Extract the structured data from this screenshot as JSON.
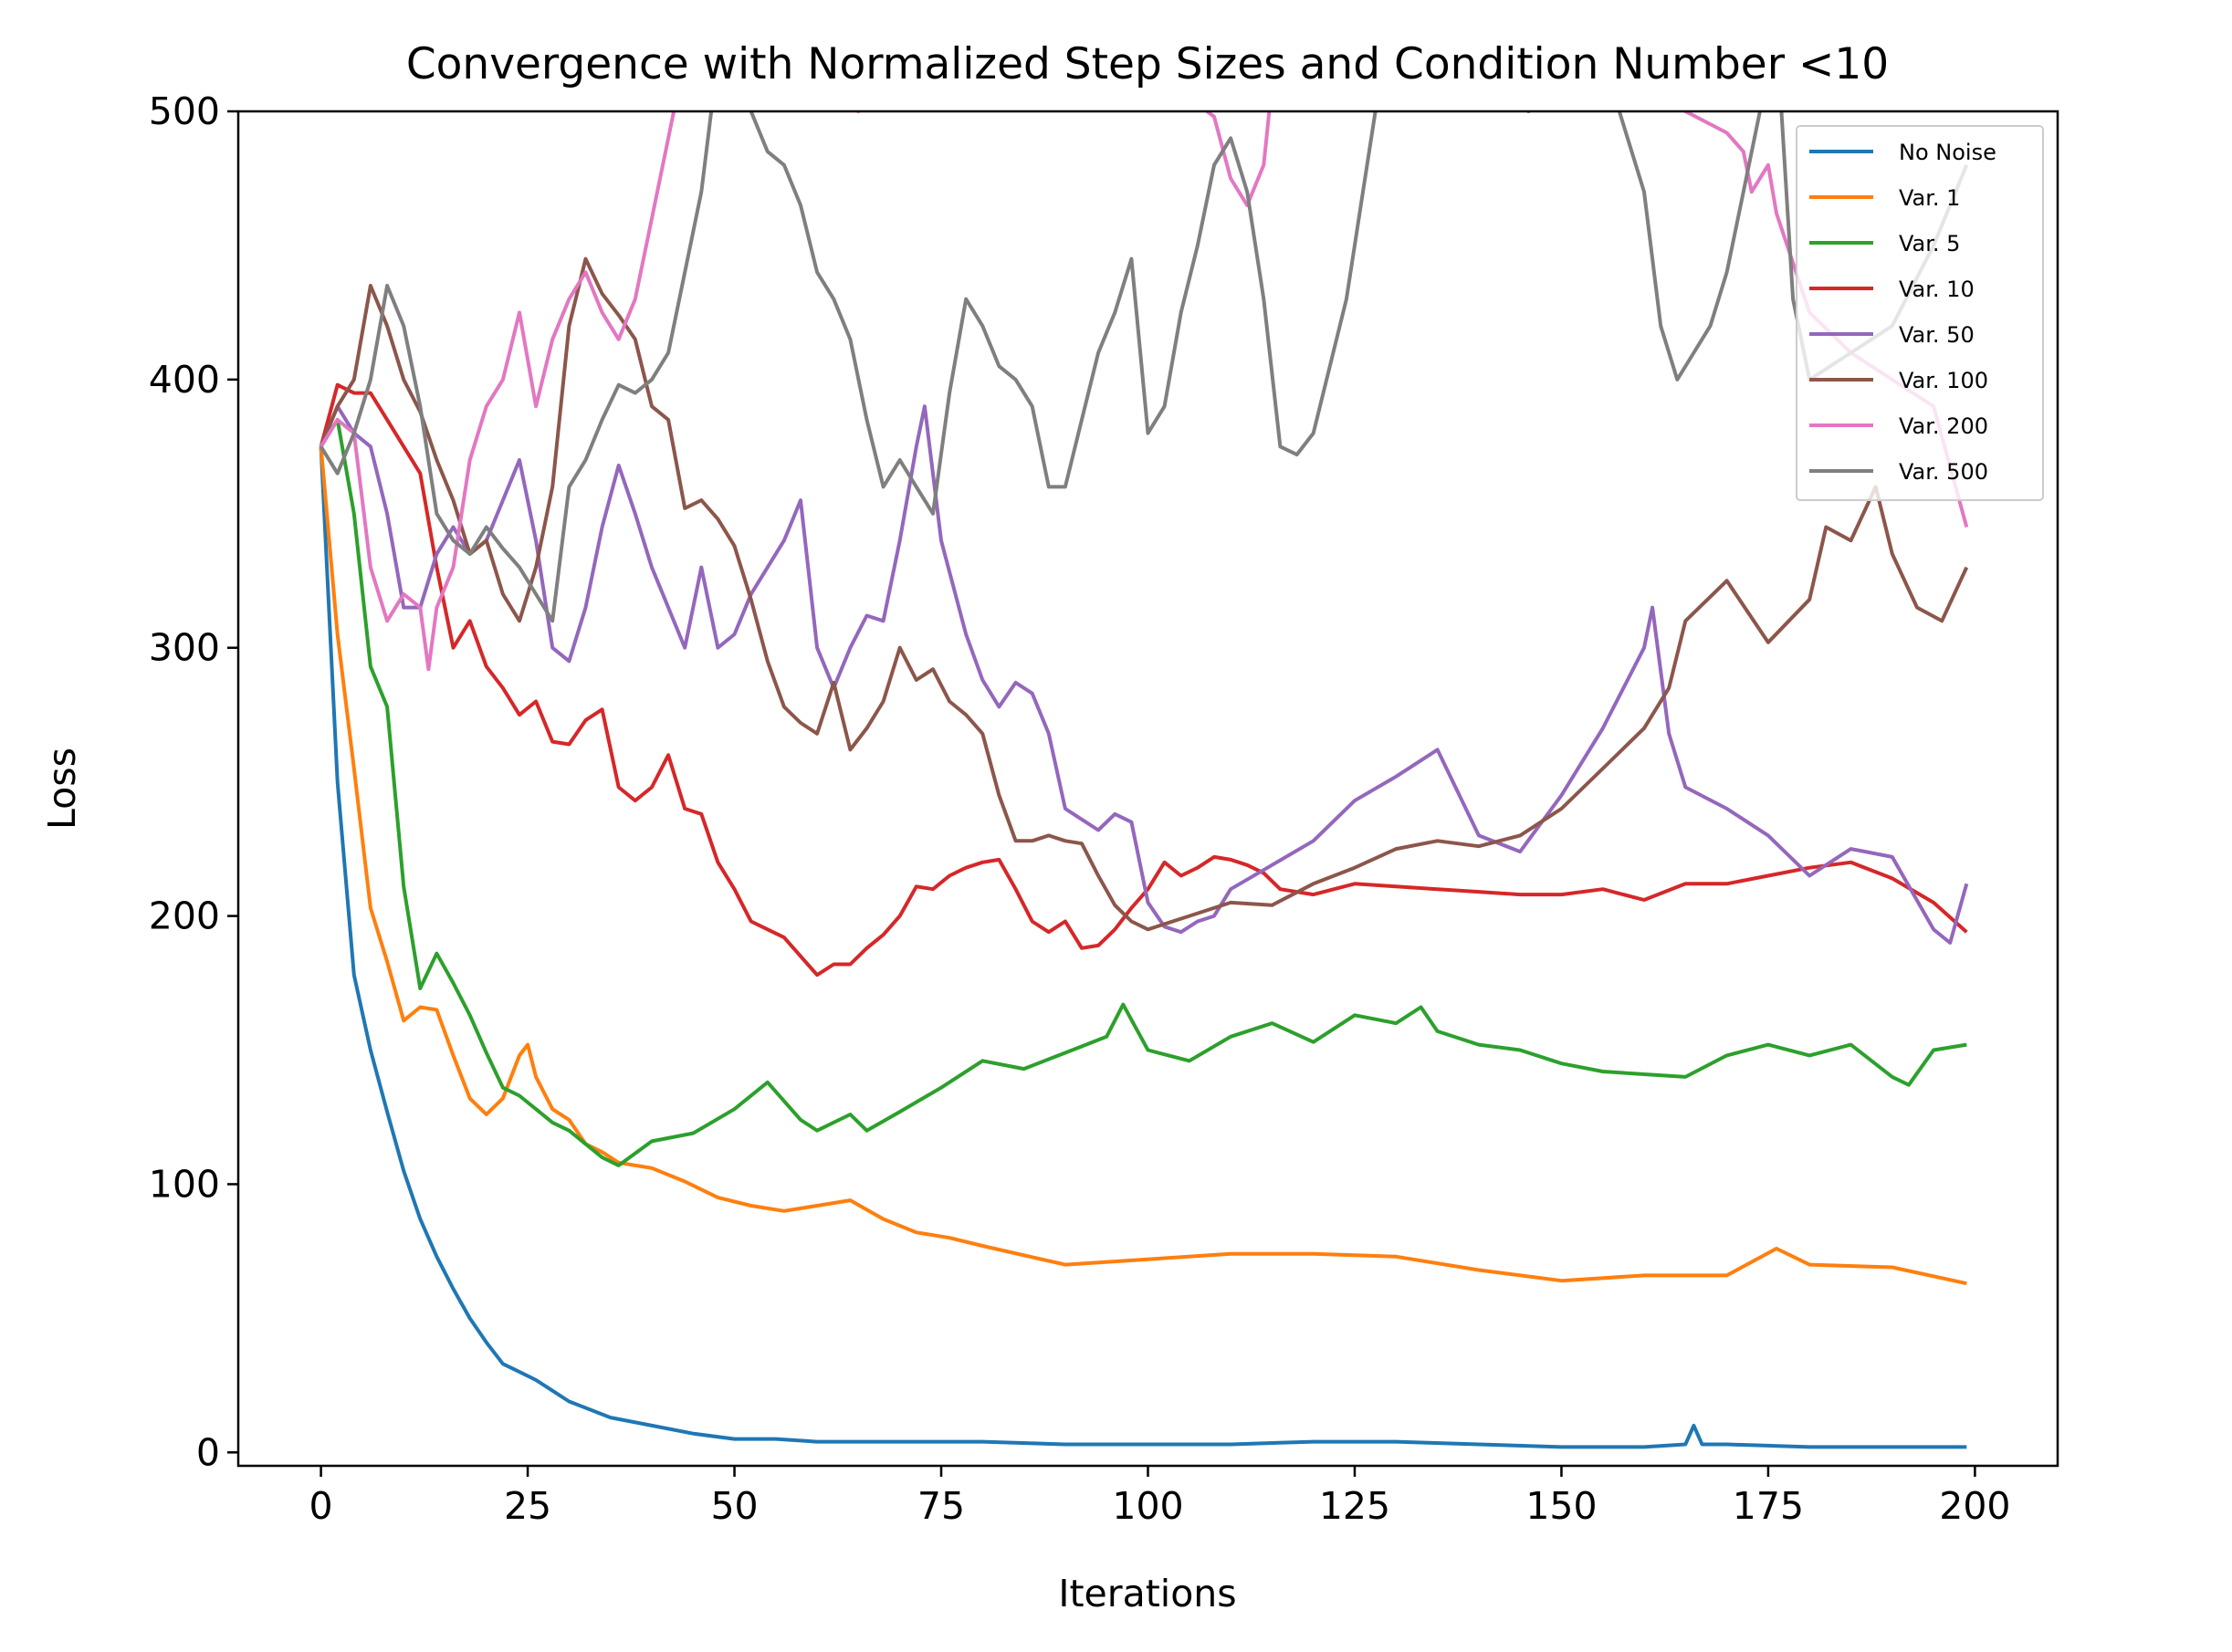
{
  "chart_data": {
    "type": "line",
    "title": "Convergence with Normalized Step Sizes and Condition Number <10",
    "xlabel": "Iterations",
    "ylabel": "Loss",
    "xlim": [
      -10,
      210
    ],
    "ylim": [
      -5,
      500
    ],
    "xticks": [
      0,
      25,
      50,
      75,
      100,
      125,
      150,
      175,
      200
    ],
    "yticks": [
      0,
      100,
      200,
      300,
      400,
      500
    ],
    "grid": false,
    "legend": "top-right",
    "series": [
      {
        "name": "No Noise",
        "color": "#1f77b4",
        "x": [
          0,
          2,
          4,
          6,
          8,
          10,
          12,
          14,
          16,
          18,
          20,
          22,
          24,
          26,
          28,
          30,
          35,
          40,
          45,
          50,
          55,
          60,
          65,
          70,
          80,
          90,
          100,
          110,
          120,
          130,
          140,
          150,
          160,
          165,
          166,
          167,
          170,
          180,
          190,
          199
        ],
        "y": [
          375,
          250,
          178,
          150,
          127,
          105,
          87,
          73,
          61,
          50,
          41,
          33,
          30,
          27,
          23,
          19,
          13,
          10,
          7,
          5,
          5,
          4,
          4,
          4,
          4,
          3,
          3,
          3,
          4,
          4,
          3,
          2,
          2,
          3,
          10,
          3,
          3,
          2,
          2,
          2
        ]
      },
      {
        "name": "Var. 1",
        "color": "#ff7f0e",
        "x": [
          0,
          2,
          4,
          6,
          8,
          10,
          12,
          14,
          16,
          18,
          20,
          22,
          24,
          25,
          26,
          28,
          30,
          32,
          34,
          36,
          40,
          44,
          48,
          52,
          56,
          60,
          64,
          68,
          72,
          76,
          80,
          90,
          100,
          110,
          120,
          130,
          140,
          150,
          160,
          170,
          176,
          180,
          190,
          199
        ],
        "y": [
          375,
          305,
          255,
          203,
          183,
          161,
          166,
          165,
          148,
          132,
          126,
          132,
          148,
          152,
          140,
          128,
          124,
          115,
          112,
          108,
          106,
          101,
          95,
          92,
          90,
          92,
          94,
          87,
          82,
          80,
          77,
          70,
          72,
          74,
          74,
          73,
          68,
          64,
          66,
          66,
          76,
          70,
          69,
          63
        ]
      },
      {
        "name": "Var. 5",
        "color": "#2ca02c",
        "x": [
          0,
          2,
          4,
          6,
          8,
          10,
          12,
          14,
          16,
          18,
          20,
          22,
          24,
          26,
          28,
          30,
          34,
          36,
          40,
          45,
          50,
          54,
          58,
          60,
          64,
          66,
          70,
          75,
          80,
          85,
          90,
          95,
          97,
          100,
          105,
          110,
          115,
          120,
          125,
          130,
          133,
          135,
          140,
          145,
          150,
          155,
          160,
          165,
          170,
          175,
          180,
          185,
          190,
          192,
          195,
          199
        ],
        "y": [
          375,
          385,
          350,
          293,
          278,
          211,
          173,
          186,
          175,
          163,
          149,
          136,
          133,
          128,
          123,
          120,
          110,
          107,
          116,
          119,
          128,
          138,
          124,
          120,
          126,
          120,
          127,
          136,
          146,
          143,
          149,
          155,
          167,
          150,
          146,
          155,
          160,
          153,
          163,
          160,
          166,
          157,
          152,
          150,
          145,
          142,
          141,
          140,
          148,
          152,
          148,
          152,
          140,
          137,
          150,
          152
        ]
      },
      {
        "name": "Var. 10",
        "color": "#d62728",
        "x": [
          0,
          2,
          4,
          6,
          8,
          10,
          12,
          14,
          16,
          18,
          20,
          22,
          24,
          26,
          28,
          30,
          32,
          34,
          36,
          38,
          40,
          42,
          44,
          46,
          48,
          50,
          52,
          54,
          56,
          58,
          60,
          62,
          64,
          66,
          68,
          70,
          72,
          74,
          76,
          78,
          80,
          82,
          84,
          86,
          88,
          90,
          92,
          94,
          96,
          98,
          100,
          102,
          104,
          106,
          108,
          110,
          112,
          114,
          116,
          120,
          125,
          130,
          135,
          140,
          145,
          150,
          155,
          160,
          165,
          170,
          175,
          180,
          185,
          190,
          195,
          199
        ],
        "y": [
          375,
          398,
          395,
          395,
          385,
          375,
          365,
          330,
          300,
          310,
          293,
          285,
          275,
          280,
          265,
          264,
          273,
          277,
          248,
          243,
          248,
          260,
          240,
          238,
          220,
          210,
          198,
          195,
          192,
          185,
          178,
          182,
          182,
          188,
          193,
          200,
          211,
          210,
          215,
          218,
          220,
          221,
          210,
          198,
          194,
          198,
          188,
          189,
          195,
          203,
          210,
          220,
          215,
          218,
          222,
          221,
          219,
          216,
          210,
          208,
          212,
          211,
          210,
          209,
          208,
          208,
          210,
          206,
          212,
          212,
          215,
          218,
          220,
          214,
          205,
          194
        ]
      },
      {
        "name": "Var. 50",
        "color": "#9467bd",
        "x": [
          0,
          2,
          4,
          6,
          8,
          10,
          12,
          14,
          16,
          18,
          20,
          22,
          24,
          26,
          28,
          30,
          32,
          34,
          36,
          38,
          40,
          42,
          44,
          46,
          48,
          50,
          52,
          54,
          56,
          58,
          60,
          62,
          64,
          66,
          68,
          70,
          72,
          73,
          75,
          78,
          80,
          82,
          84,
          86,
          88,
          90,
          92,
          94,
          96,
          98,
          100,
          102,
          104,
          106,
          108,
          110,
          115,
          120,
          125,
          130,
          135,
          140,
          145,
          150,
          155,
          160,
          161,
          163,
          165,
          170,
          175,
          180,
          185,
          190,
          195,
          197,
          199
        ],
        "y": [
          375,
          390,
          380,
          375,
          350,
          315,
          315,
          335,
          345,
          335,
          340,
          355,
          370,
          340,
          300,
          295,
          315,
          345,
          368,
          350,
          330,
          315,
          300,
          330,
          300,
          305,
          320,
          330,
          340,
          355,
          300,
          285,
          300,
          312,
          310,
          340,
          375,
          390,
          340,
          305,
          288,
          278,
          287,
          283,
          268,
          240,
          236,
          232,
          238,
          235,
          205,
          196,
          194,
          198,
          200,
          210,
          219,
          228,
          243,
          252,
          262,
          230,
          224,
          245,
          270,
          300,
          315,
          268,
          248,
          240,
          230,
          215,
          225,
          222,
          195,
          190,
          212
        ]
      },
      {
        "name": "Var. 100",
        "color": "#8c564b",
        "x": [
          0,
          2,
          4,
          6,
          8,
          10,
          12,
          14,
          16,
          18,
          20,
          22,
          24,
          26,
          28,
          30,
          32,
          34,
          36,
          38,
          40,
          42,
          44,
          46,
          48,
          50,
          52,
          54,
          56,
          58,
          60,
          62,
          64,
          66,
          68,
          70,
          72,
          74,
          76,
          78,
          80,
          82,
          84,
          86,
          88,
          90,
          92,
          94,
          96,
          98,
          100,
          105,
          110,
          115,
          120,
          125,
          130,
          135,
          140,
          145,
          150,
          155,
          160,
          163,
          165,
          170,
          175,
          180,
          182,
          185,
          188,
          190,
          193,
          196,
          199
        ],
        "y": [
          375,
          390,
          400,
          435,
          420,
          400,
          388,
          370,
          355,
          335,
          340,
          320,
          310,
          330,
          360,
          420,
          445,
          432,
          424,
          415,
          390,
          385,
          352,
          355,
          348,
          338,
          318,
          295,
          278,
          272,
          268,
          287,
          262,
          270,
          280,
          300,
          288,
          292,
          280,
          275,
          268,
          245,
          228,
          228,
          230,
          228,
          227,
          215,
          204,
          198,
          195,
          200,
          205,
          204,
          212,
          218,
          225,
          228,
          226,
          230,
          240,
          255,
          270,
          285,
          310,
          325,
          302,
          318,
          345,
          340,
          360,
          335,
          315,
          310,
          330
        ]
      },
      {
        "name": "Var. 200",
        "color": "#e377c2",
        "x": [
          0,
          2,
          4,
          5,
          6,
          8,
          10,
          12,
          13,
          14,
          16,
          18,
          20,
          22,
          24,
          26,
          28,
          30,
          32,
          34,
          36,
          38,
          40,
          42,
          43,
          44,
          46,
          48,
          50,
          55,
          60,
          65,
          70,
          80,
          90,
          100,
          105,
          108,
          110,
          112,
          114,
          115,
          120,
          125,
          130,
          140,
          150,
          160,
          165,
          170,
          172,
          173,
          175,
          176,
          180,
          185,
          190,
          195,
          199
        ],
        "y": [
          375,
          385,
          380,
          355,
          330,
          310,
          320,
          315,
          292,
          315,
          330,
          370,
          390,
          400,
          425,
          390,
          415,
          430,
          440,
          425,
          415,
          430,
          460,
          490,
          505,
          508,
          510,
          512,
          515,
          512,
          505,
          500,
          508,
          510,
          515,
          512,
          505,
          498,
          475,
          465,
          480,
          510,
          512,
          506,
          505,
          510,
          512,
          508,
          500,
          492,
          485,
          470,
          480,
          462,
          425,
          410,
          400,
          390,
          345
        ]
      },
      {
        "name": "Var. 500",
        "color": "#7f7f7f",
        "x": [
          0,
          2,
          4,
          6,
          8,
          10,
          12,
          14,
          16,
          18,
          20,
          22,
          24,
          26,
          28,
          30,
          32,
          34,
          36,
          38,
          40,
          42,
          44,
          46,
          48,
          50,
          52,
          54,
          56,
          58,
          60,
          62,
          64,
          66,
          68,
          70,
          72,
          74,
          76,
          78,
          80,
          82,
          84,
          86,
          88,
          90,
          92,
          94,
          96,
          98,
          100,
          102,
          104,
          106,
          108,
          110,
          112,
          114,
          116,
          118,
          120,
          122,
          124,
          126,
          128,
          130,
          140,
          146,
          150,
          155,
          160,
          162,
          164,
          166,
          168,
          170,
          172,
          174,
          176,
          178,
          180,
          185,
          190,
          195,
          199
        ],
        "y": [
          375,
          365,
          380,
          400,
          435,
          420,
          390,
          350,
          340,
          335,
          345,
          337,
          330,
          320,
          310,
          360,
          370,
          385,
          398,
          395,
          400,
          410,
          440,
          470,
          520,
          515,
          500,
          485,
          480,
          465,
          440,
          430,
          415,
          385,
          360,
          370,
          360,
          350,
          395,
          430,
          420,
          405,
          400,
          390,
          360,
          360,
          385,
          410,
          425,
          445,
          380,
          390,
          425,
          450,
          480,
          490,
          470,
          430,
          375,
          372,
          380,
          405,
          430,
          470,
          510,
          520,
          510,
          500,
          505,
          520,
          470,
          420,
          400,
          410,
          420,
          440,
          470,
          500,
          530,
          430,
          400,
          410,
          420,
          450,
          480
        ]
      }
    ]
  }
}
